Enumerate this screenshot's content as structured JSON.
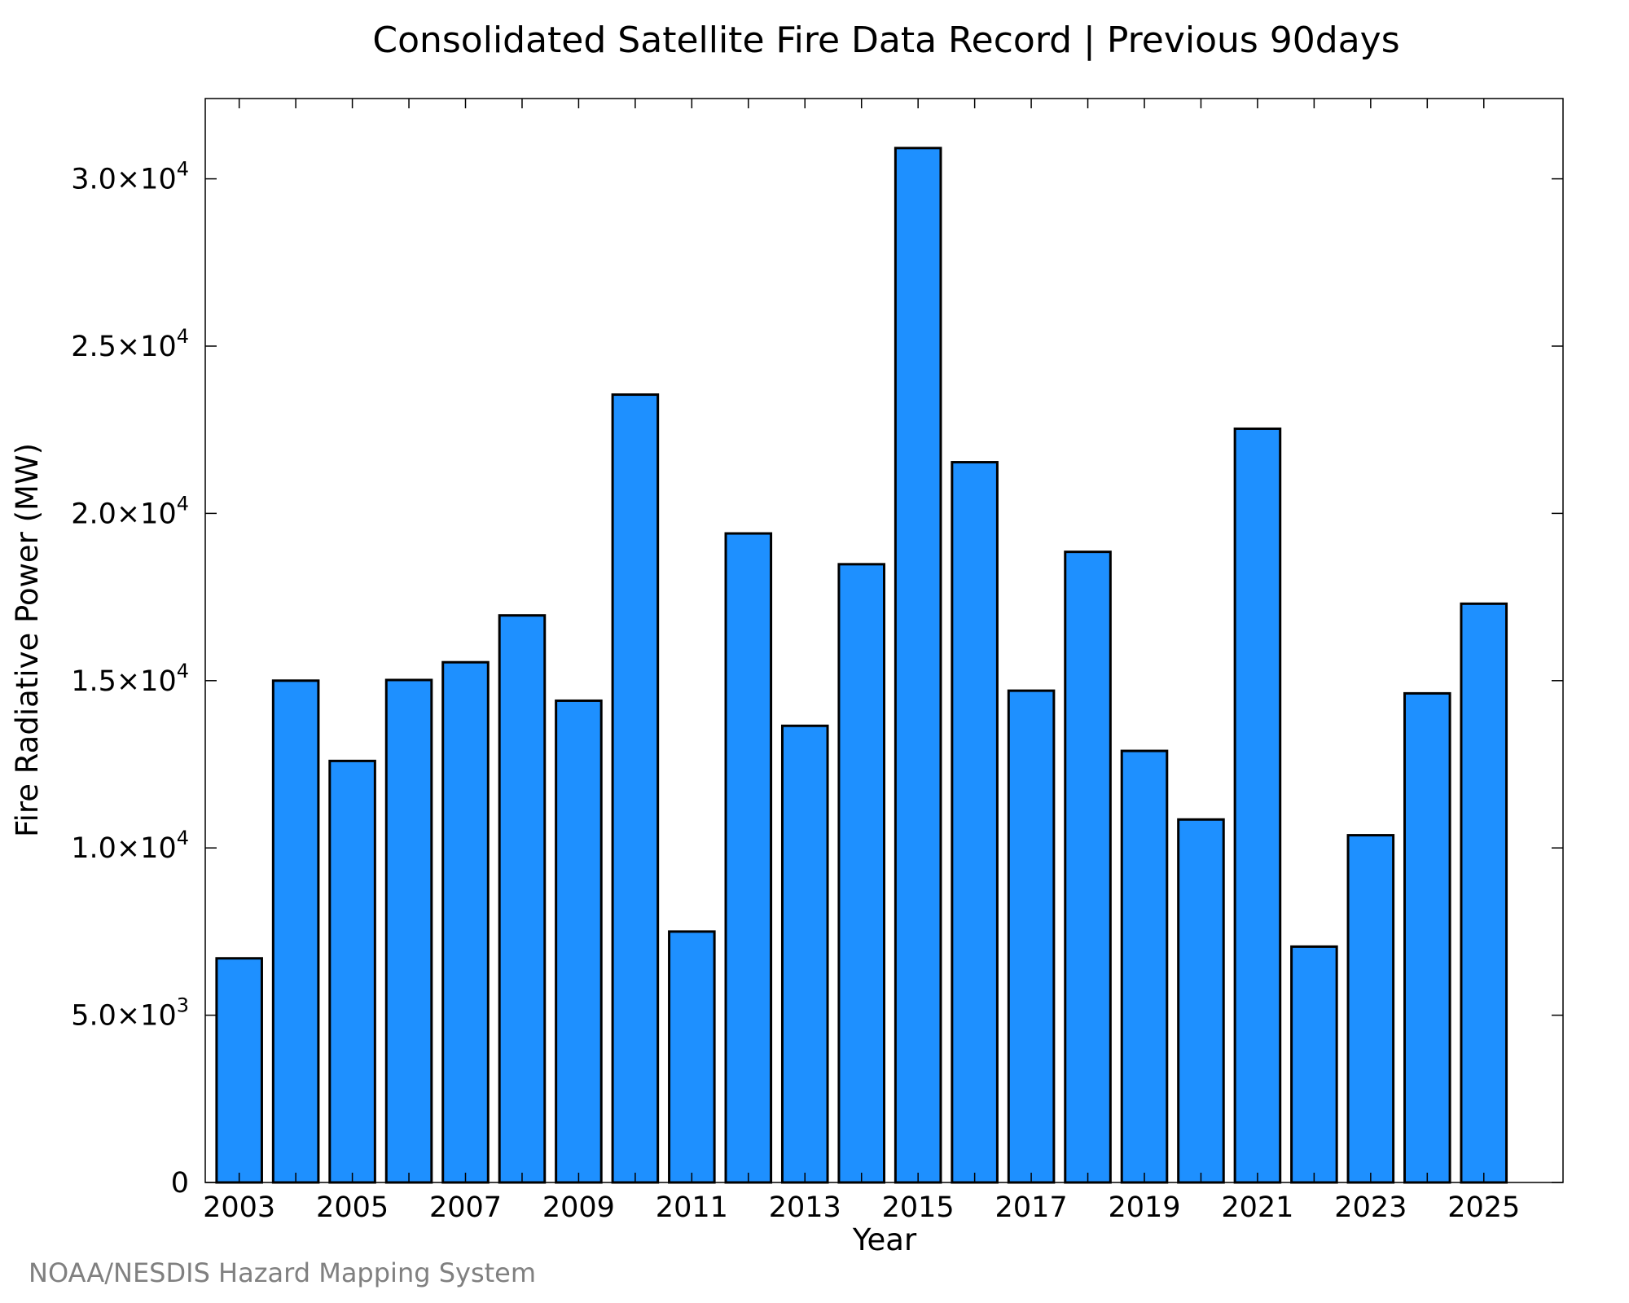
{
  "chart_data": {
    "type": "bar",
    "title": "Consolidated Satellite Fire Data Record | Previous 90days",
    "xlabel": "Year",
    "ylabel": "Fire Radiative Power (MW)",
    "credit": "NOAA/NESDIS Hazard Mapping System",
    "categories": [
      2003,
      2004,
      2005,
      2006,
      2007,
      2008,
      2009,
      2010,
      2011,
      2012,
      2013,
      2014,
      2015,
      2016,
      2017,
      2018,
      2019,
      2020,
      2021,
      2022,
      2023,
      2024,
      2025
    ],
    "values": [
      6700,
      15000,
      12600,
      15020,
      15550,
      16950,
      14400,
      23550,
      7500,
      19400,
      13650,
      18480,
      30920,
      21530,
      14700,
      18850,
      12900,
      10850,
      22530,
      7050,
      10380,
      14620,
      17300
    ],
    "x_tick_labels": [
      "2003",
      "2005",
      "2007",
      "2009",
      "2011",
      "2013",
      "2015",
      "2017",
      "2019",
      "2021",
      "2023",
      "2025"
    ],
    "y_ticks": [
      {
        "value": 0,
        "mantissa": "0",
        "exp": ""
      },
      {
        "value": 5000,
        "mantissa": "5.0×10",
        "exp": "3"
      },
      {
        "value": 10000,
        "mantissa": "1.0×10",
        "exp": "4"
      },
      {
        "value": 15000,
        "mantissa": "1.5×10",
        "exp": "4"
      },
      {
        "value": 20000,
        "mantissa": "2.0×10",
        "exp": "4"
      },
      {
        "value": 25000,
        "mantissa": "2.5×10",
        "exp": "4"
      },
      {
        "value": 30000,
        "mantissa": "3.0×10",
        "exp": "4"
      }
    ],
    "xlim": [
      2002.4,
      2026.4
    ],
    "ylim": [
      0,
      32400
    ],
    "bar_color": "#1e90ff",
    "grid": false,
    "legend": "none"
  }
}
